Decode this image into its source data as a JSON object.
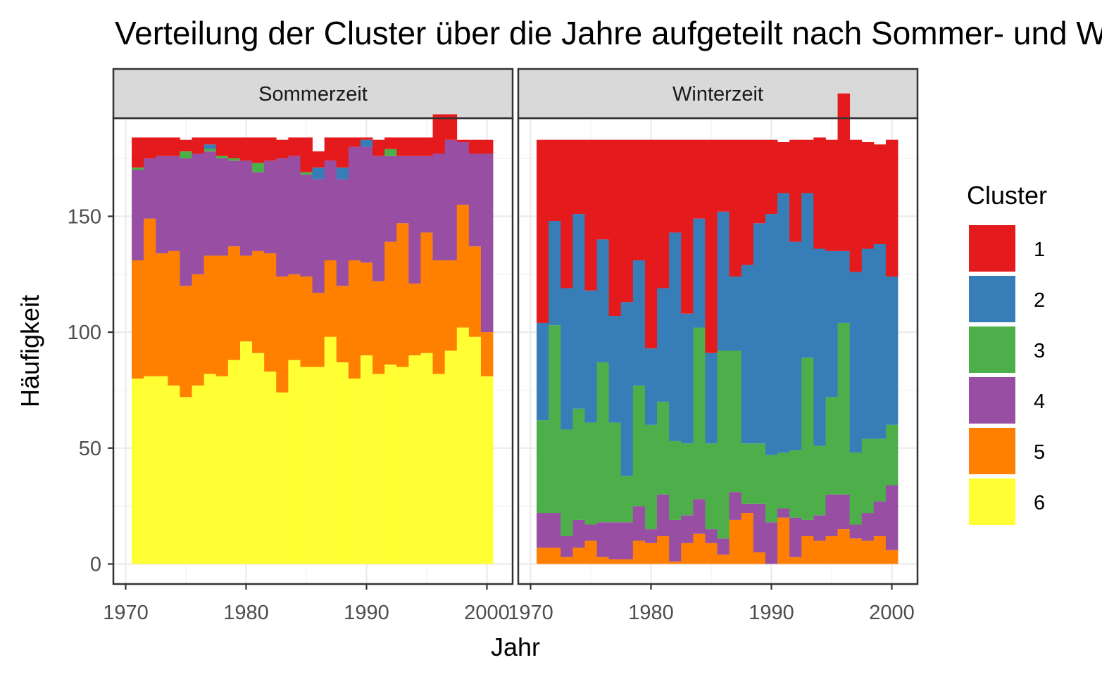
{
  "chart_data": {
    "type": "bar",
    "stacked": true,
    "title": "Verteilung der Cluster über die Jahre aufgeteilt nach Sommer- und Winterzeit",
    "xlabel": "Jahr",
    "ylabel": "Häufigkeit",
    "xlim": [
      1970,
      2000
    ],
    "ylim": [
      0,
      185
    ],
    "x_ticks": [
      1970,
      1980,
      1990,
      2000
    ],
    "y_ticks": [
      0,
      50,
      100,
      150
    ],
    "grid": true,
    "legend": {
      "title": "Cluster",
      "position": "right"
    },
    "cluster_colors": {
      "1": "#E41A1C",
      "2": "#377EB8",
      "3": "#4DAF4A",
      "4": "#984EA3",
      "5": "#FF7F00",
      "6": "#FFFF33"
    },
    "stack_order": [
      "6",
      "5",
      "4",
      "3",
      "2",
      "1"
    ],
    "panels": [
      {
        "label": "Sommerzeit",
        "years": [
          1971,
          1972,
          1973,
          1974,
          1975,
          1976,
          1977,
          1978,
          1979,
          1980,
          1981,
          1982,
          1983,
          1984,
          1985,
          1986,
          1987,
          1988,
          1989,
          1990,
          1991,
          1992,
          1993,
          1994,
          1995,
          1996,
          1997,
          1998,
          1999,
          2000
        ],
        "series": [
          {
            "cluster": "6",
            "values": [
              80,
              81,
              81,
              77,
              72,
              77,
              82,
              81,
              88,
              96,
              91,
              83,
              74,
              88,
              85,
              85,
              98,
              87,
              80,
              90,
              82,
              86,
              85,
              90,
              91,
              82,
              92,
              102,
              98,
              81
            ]
          },
          {
            "cluster": "5",
            "values": [
              51,
              68,
              53,
              58,
              48,
              48,
              51,
              52,
              49,
              37,
              44,
              51,
              50,
              37,
              39,
              32,
              33,
              33,
              51,
              40,
              40,
              53,
              62,
              31,
              52,
              49,
              39,
              53,
              39,
              19
            ]
          },
          {
            "cluster": "4",
            "values": [
              39,
              26,
              42,
              41,
              55,
              52,
              45,
              42,
              37,
              41,
              34,
              40,
              51,
              51,
              44,
              49,
              43,
              46,
              49,
              50,
              54,
              37,
              29,
              55,
              33,
              46,
              52,
              27,
              40,
              77
            ]
          },
          {
            "cluster": "3",
            "values": [
              1,
              0,
              0,
              0,
              3,
              0,
              1,
              1,
              1,
              0,
              4,
              0,
              0,
              0,
              1,
              0,
              0,
              0,
              0,
              0,
              0,
              3,
              0,
              0,
              0,
              0,
              0,
              0,
              0,
              0
            ]
          },
          {
            "cluster": "2",
            "values": [
              0,
              0,
              0,
              0,
              0,
              0,
              2,
              0,
              0,
              0,
              0,
              0,
              0,
              0,
              0,
              5,
              0,
              5,
              0,
              3,
              0,
              0,
              0,
              0,
              0,
              0,
              0,
              0,
              0,
              0
            ]
          },
          {
            "cluster": "1",
            "values": [
              13,
              9,
              8,
              8,
              5,
              7,
              3,
              8,
              9,
              10,
              11,
              10,
              8,
              8,
              15,
              7,
              10,
              13,
              4,
              1,
              7,
              5,
              8,
              8,
              8,
              17,
              11,
              1,
              6,
              6
            ]
          }
        ]
      },
      {
        "label": "Winterzeit",
        "years": [
          1971,
          1972,
          1973,
          1974,
          1975,
          1976,
          1977,
          1978,
          1979,
          1980,
          1981,
          1982,
          1983,
          1984,
          1985,
          1986,
          1987,
          1988,
          1989,
          1990,
          1991,
          1992,
          1993,
          1994,
          1995,
          1996,
          1997,
          1998,
          1999,
          2000
        ],
        "series": [
          {
            "cluster": "5",
            "values": [
              7,
              7,
              3,
              7,
              10,
              3,
              2,
              2,
              10,
              9,
              12,
              1,
              9,
              13,
              9,
              4,
              19,
              22,
              5,
              0,
              20,
              3,
              12,
              10,
              12,
              15,
              11,
              10,
              12,
              6
            ]
          },
          {
            "cluster": "4",
            "values": [
              15,
              15,
              9,
              12,
              7,
              15,
              16,
              16,
              15,
              6,
              18,
              18,
              12,
              15,
              6,
              7,
              12,
              4,
              21,
              18,
              4,
              17,
              7,
              11,
              18,
              15,
              6,
              12,
              15,
              28
            ]
          },
          {
            "cluster": "3",
            "values": [
              40,
              81,
              46,
              48,
              44,
              69,
              43,
              20,
              52,
              45,
              40,
              34,
              31,
              74,
              37,
              81,
              61,
              26,
              26,
              29,
              24,
              29,
              70,
              30,
              42,
              74,
              31,
              32,
              27,
              26
            ]
          },
          {
            "cluster": "2",
            "values": [
              42,
              45,
              61,
              84,
              57,
              53,
              46,
              75,
              54,
              33,
              49,
              90,
              56,
              47,
              39,
              60,
              32,
              77,
              95,
              104,
              112,
              90,
              71,
              85,
              63,
              31,
              78,
              82,
              84,
              64
            ]
          },
          {
            "cluster": "1",
            "values": [
              79,
              35,
              64,
              32,
              65,
              43,
              76,
              70,
              52,
              90,
              64,
              40,
              75,
              34,
              92,
              31,
              59,
              54,
              36,
              32,
              22,
              44,
              23,
              48,
              48,
              68,
              57,
              46,
              43,
              59
            ]
          }
        ]
      }
    ]
  }
}
